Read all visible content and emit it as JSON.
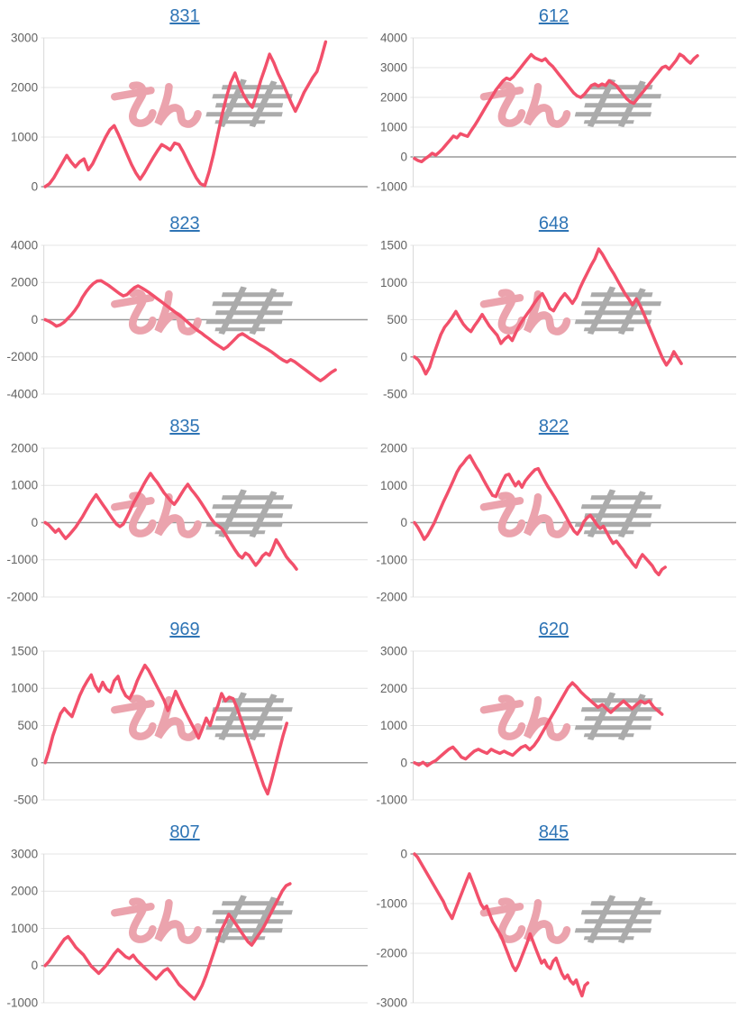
{
  "page": {
    "background": "#ffffff"
  },
  "style": {
    "line_color": "#f2506b",
    "link_color": "#2e74b5",
    "grid_color": "#e4e4e4",
    "zero_line_color": "#9a9a9a",
    "axis_line_color": "#d9d9d9",
    "label_color": "#636363"
  },
  "watermark": {
    "text": "みんパチ",
    "pink_color": "#eba3ad",
    "gray_color": "#ababab"
  },
  "chart_data": [
    {
      "type": "line",
      "title": "831",
      "ylim": [
        0,
        3000
      ],
      "yticks": [
        3000,
        2000,
        1000,
        0
      ],
      "grid": true,
      "x_extent": 0.87,
      "values": [
        0,
        60,
        180,
        330,
        480,
        630,
        500,
        400,
        500,
        560,
        340,
        460,
        640,
        820,
        1000,
        1150,
        1230,
        1050,
        850,
        650,
        450,
        280,
        150,
        280,
        430,
        580,
        720,
        850,
        800,
        740,
        880,
        850,
        700,
        520,
        350,
        180,
        60,
        20,
        300,
        650,
        1050,
        1450,
        1800,
        2100,
        2290,
        2050,
        1850,
        1700,
        1600,
        1850,
        2150,
        2400,
        2670,
        2500,
        2280,
        2100,
        1900,
        1700,
        1520,
        1700,
        1900,
        2050,
        2200,
        2320,
        2600,
        2920
      ]
    },
    {
      "type": "line",
      "title": "612",
      "ylim": [
        -1000,
        4000
      ],
      "yticks": [
        4000,
        3000,
        2000,
        1000,
        0,
        -1000
      ],
      "grid": true,
      "x_extent": 0.88,
      "values": [
        -50,
        -120,
        -160,
        -60,
        20,
        120,
        60,
        160,
        280,
        420,
        560,
        700,
        640,
        780,
        730,
        690,
        880,
        1050,
        1250,
        1450,
        1650,
        1850,
        2050,
        2250,
        2400,
        2550,
        2650,
        2600,
        2700,
        2850,
        3000,
        3150,
        3300,
        3440,
        3330,
        3280,
        3230,
        3300,
        3150,
        3050,
        2900,
        2750,
        2600,
        2450,
        2300,
        2150,
        2050,
        2000,
        2100,
        2250,
        2400,
        2450,
        2380,
        2450,
        2400,
        2560,
        2480,
        2400,
        2250,
        2100,
        1950,
        1850,
        1800,
        1950,
        2100,
        2250,
        2400,
        2550,
        2700,
        2850,
        3000,
        3050,
        2950,
        3100,
        3250,
        3450,
        3380,
        3250,
        3150,
        3300,
        3400
      ]
    },
    {
      "type": "line",
      "title": "823",
      "ylim": [
        -4000,
        4000
      ],
      "yticks": [
        4000,
        2000,
        0,
        -2000,
        -4000
      ],
      "grid": true,
      "x_extent": 0.9,
      "values": [
        0,
        -80,
        -200,
        -350,
        -280,
        -150,
        50,
        250,
        500,
        800,
        1200,
        1500,
        1750,
        1950,
        2080,
        2100,
        1980,
        1850,
        1700,
        1550,
        1400,
        1280,
        1350,
        1550,
        1720,
        1820,
        1700,
        1580,
        1450,
        1300,
        1150,
        1000,
        850,
        700,
        550,
        400,
        250,
        100,
        -80,
        -250,
        -420,
        -580,
        -720,
        -880,
        -1020,
        -1180,
        -1320,
        -1450,
        -1580,
        -1450,
        -1250,
        -1050,
        -850,
        -750,
        -880,
        -1020,
        -1120,
        -1250,
        -1380,
        -1500,
        -1620,
        -1750,
        -1900,
        -2050,
        -2180,
        -2280,
        -2150,
        -2250,
        -2400,
        -2550,
        -2700,
        -2850,
        -3000,
        -3150,
        -3280,
        -3150,
        -2980,
        -2820,
        -2700
      ]
    },
    {
      "type": "line",
      "title": "648",
      "ylim": [
        -500,
        1500
      ],
      "yticks": [
        1500,
        1000,
        500,
        0,
        -500
      ],
      "grid": true,
      "x_extent": 0.83,
      "values": [
        0,
        -40,
        -120,
        -230,
        -140,
        20,
        160,
        300,
        400,
        460,
        530,
        610,
        520,
        440,
        380,
        340,
        420,
        490,
        570,
        490,
        410,
        350,
        290,
        180,
        240,
        280,
        220,
        330,
        430,
        510,
        580,
        650,
        730,
        800,
        850,
        760,
        650,
        620,
        710,
        790,
        850,
        790,
        720,
        800,
        920,
        1030,
        1130,
        1230,
        1320,
        1450,
        1380,
        1290,
        1200,
        1120,
        1030,
        940,
        850,
        780,
        700,
        780,
        690,
        580,
        460,
        340,
        220,
        100,
        -20,
        -110,
        -40,
        70,
        -10,
        -90
      ]
    },
    {
      "type": "line",
      "title": "835",
      "ylim": [
        -2000,
        2000
      ],
      "yticks": [
        2000,
        1000,
        0,
        -1000,
        -2000
      ],
      "grid": true,
      "x_extent": 0.78,
      "values": [
        0,
        -60,
        -160,
        -260,
        -180,
        -310,
        -430,
        -340,
        -230,
        -120,
        20,
        160,
        320,
        480,
        620,
        750,
        610,
        480,
        350,
        210,
        80,
        -40,
        -110,
        -40,
        130,
        320,
        520,
        680,
        850,
        1020,
        1180,
        1320,
        1190,
        1080,
        940,
        800,
        690,
        580,
        490,
        610,
        760,
        910,
        1030,
        890,
        780,
        660,
        520,
        380,
        230,
        90,
        -30,
        -90,
        -160,
        -300,
        -450,
        -600,
        -750,
        -880,
        -950,
        -820,
        -880,
        -1020,
        -1150,
        -1040,
        -900,
        -820,
        -880,
        -700,
        -460,
        -600,
        -760,
        -920,
        -1030,
        -1130,
        -1250
      ]
    },
    {
      "type": "line",
      "title": "822",
      "ylim": [
        -2000,
        2000
      ],
      "yticks": [
        2000,
        1000,
        0,
        -1000,
        -2000
      ],
      "grid": true,
      "x_extent": 0.78,
      "values": [
        0,
        -120,
        -280,
        -450,
        -340,
        -180,
        -20,
        180,
        380,
        580,
        760,
        950,
        1150,
        1350,
        1500,
        1600,
        1720,
        1800,
        1640,
        1480,
        1350,
        1180,
        1020,
        870,
        730,
        700,
        920,
        1110,
        1270,
        1300,
        1140,
        990,
        1100,
        950,
        1120,
        1230,
        1330,
        1420,
        1450,
        1280,
        1120,
        960,
        830,
        690,
        540,
        390,
        240,
        80,
        -80,
        -230,
        -310,
        -180,
        20,
        130,
        200,
        80,
        -60,
        -160,
        -100,
        -260,
        -420,
        -560,
        -500,
        -620,
        -730,
        -870,
        -970,
        -1100,
        -1200,
        -1000,
        -860,
        -960,
        -1060,
        -1160,
        -1310,
        -1400,
        -1260,
        -1200
      ]
    },
    {
      "type": "line",
      "title": "969",
      "ylim": [
        -500,
        1500
      ],
      "yticks": [
        1500,
        1000,
        500,
        0,
        -500
      ],
      "grid": true,
      "x_extent": 0.75,
      "values": [
        0,
        160,
        360,
        510,
        660,
        730,
        670,
        620,
        760,
        900,
        1010,
        1100,
        1180,
        1040,
        960,
        1080,
        990,
        950,
        1100,
        1160,
        1000,
        900,
        860,
        960,
        1100,
        1210,
        1310,
        1240,
        1140,
        1040,
        940,
        840,
        700,
        810,
        960,
        850,
        740,
        640,
        540,
        440,
        330,
        460,
        600,
        500,
        660,
        760,
        930,
        830,
        880,
        860,
        740,
        590,
        440,
        290,
        140,
        -10,
        -160,
        -310,
        -420,
        -240,
        -40,
        160,
        360,
        530
      ]
    },
    {
      "type": "line",
      "title": "620",
      "ylim": [
        -1000,
        3000
      ],
      "yticks": [
        3000,
        2000,
        1000,
        0,
        -1000
      ],
      "grid": true,
      "x_extent": 0.77,
      "values": [
        0,
        -60,
        10,
        -80,
        0,
        60,
        160,
        260,
        360,
        420,
        290,
        150,
        100,
        210,
        310,
        360,
        300,
        250,
        360,
        300,
        250,
        310,
        250,
        200,
        310,
        410,
        460,
        350,
        460,
        620,
        820,
        1020,
        1220,
        1420,
        1620,
        1820,
        2020,
        2150,
        2040,
        1900,
        1790,
        1690,
        1590,
        1490,
        1560,
        1450,
        1350,
        1460,
        1560,
        1660,
        1550,
        1450,
        1560,
        1660,
        1600,
        1660,
        1500,
        1400,
        1300
      ]
    },
    {
      "type": "line",
      "title": "807",
      "ylim": [
        -1000,
        3000
      ],
      "yticks": [
        3000,
        2000,
        1000,
        0,
        -1000
      ],
      "grid": true,
      "x_extent": 0.76,
      "values": [
        0,
        110,
        260,
        410,
        560,
        710,
        780,
        640,
        490,
        390,
        290,
        140,
        -10,
        -110,
        -210,
        -100,
        10,
        160,
        310,
        430,
        340,
        240,
        190,
        280,
        140,
        40,
        -60,
        -160,
        -260,
        -360,
        -250,
        -140,
        -80,
        -210,
        -360,
        -510,
        -610,
        -710,
        -810,
        -900,
        -740,
        -540,
        -280,
        20,
        330,
        640,
        940,
        1150,
        1380,
        1240,
        1090,
        940,
        790,
        640,
        550,
        710,
        860,
        1010,
        1210,
        1410,
        1610,
        1810,
        2010,
        2150,
        2200
      ]
    },
    {
      "type": "line",
      "title": "845",
      "ylim": [
        -3000,
        0
      ],
      "yticks": [
        0,
        -1000,
        -2000,
        -3000
      ],
      "grid": true,
      "x_extent": 0.54,
      "values": [
        0,
        -60,
        -160,
        -260,
        -360,
        -460,
        -560,
        -660,
        -760,
        -860,
        -960,
        -1100,
        -1200,
        -1300,
        -1140,
        -990,
        -840,
        -690,
        -540,
        -400,
        -550,
        -700,
        -860,
        -1010,
        -1100,
        -1050,
        -1210,
        -1360,
        -1460,
        -1560,
        -1660,
        -1810,
        -1960,
        -2110,
        -2260,
        -2350,
        -2240,
        -2090,
        -1940,
        -1790,
        -1610,
        -1760,
        -1910,
        -2060,
        -2200,
        -2140,
        -2260,
        -2310,
        -2160,
        -2100,
        -2260,
        -2410,
        -2510,
        -2440,
        -2560,
        -2620,
        -2540,
        -2720,
        -2860,
        -2650,
        -2600
      ]
    }
  ]
}
